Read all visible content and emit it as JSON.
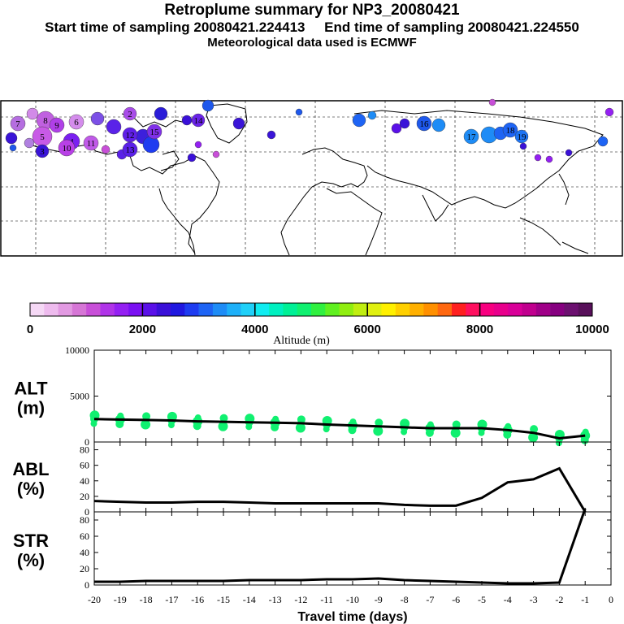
{
  "header": {
    "title": "Retroplume summary for NP3_20080421",
    "sampling_line": "Start time of sampling 20080421.224413     End time of sampling 20080421.224550",
    "met_line": "Meteorological data used is ECMWF"
  },
  "colorbar": {
    "ticks": [
      "0",
      "2000",
      "4000",
      "6000",
      "8000",
      "10000"
    ],
    "label": "Altitude (m)",
    "colors": [
      "#f5d8f5",
      "#eebbee",
      "#e29ae2",
      "#d676d6",
      "#c84fd8",
      "#b034e8",
      "#9420f2",
      "#7a10f2",
      "#5a10e8",
      "#3a10d8",
      "#2018e0",
      "#1e3cf0",
      "#1e64f4",
      "#1e8cf6",
      "#1eb0f8",
      "#20d0f8",
      "#10ecf0",
      "#00f0c0",
      "#00f096",
      "#10f070",
      "#30f040",
      "#60f020",
      "#90ee10",
      "#c0ee10",
      "#e0f010",
      "#fff000",
      "#ffd000",
      "#ffb000",
      "#ff9000",
      "#ff6810",
      "#ff2020",
      "#ff1060",
      "#f80080",
      "#e8008c",
      "#d80098",
      "#c0008e",
      "#a00088",
      "#860080",
      "#6c1070",
      "#58105a"
    ]
  },
  "map": {
    "markers": [
      {
        "label": "7",
        "color": "#b56ee0"
      },
      {
        "label": "8",
        "color": "#c060e0"
      },
      {
        "label": "9",
        "color": "#b040e8"
      },
      {
        "label": "6",
        "color": "#d48cec"
      },
      {
        "label": "5",
        "color": "#c85ae6"
      },
      {
        "label": "4",
        "color": "#7a20f0"
      },
      {
        "label": "3",
        "color": "#3a14d8"
      },
      {
        "label": "10",
        "color": "#b840e6"
      },
      {
        "label": "11",
        "color": "#c05ae8"
      },
      {
        "label": "12",
        "color": "#6020e8"
      },
      {
        "label": "13",
        "color": "#5a20e8"
      },
      {
        "label": "2",
        "color": "#a84ce8"
      },
      {
        "label": "14",
        "color": "#6a24e8"
      },
      {
        "label": "15",
        "color": "#8030e8"
      },
      {
        "label": "16",
        "color": "#1e58ec"
      },
      {
        "label": "17",
        "color": "#1e8cf6"
      },
      {
        "label": "18",
        "color": "#1e64f4"
      },
      {
        "label": "19",
        "color": "#1e74f4"
      }
    ]
  },
  "chart_data": [
    {
      "type": "scatter+line",
      "side_label": [
        "ALT",
        "(m)"
      ],
      "ylim": [
        0,
        10000
      ],
      "yticks": [
        "0",
        "5000",
        "10000"
      ],
      "x": [
        -20,
        -19,
        -18,
        -17,
        -16,
        -15,
        -14,
        -13,
        -12,
        -11,
        -10,
        -9,
        -8,
        -7,
        -6,
        -5,
        -4,
        -3,
        -2,
        -1
      ],
      "line_values": [
        2500,
        2450,
        2400,
        2350,
        2250,
        2200,
        2150,
        2100,
        2050,
        1900,
        1800,
        1700,
        1600,
        1500,
        1500,
        1500,
        1300,
        1000,
        400,
        700
      ],
      "point_color": "#10f070"
    },
    {
      "type": "line",
      "side_label": [
        "ABL",
        "(%)"
      ],
      "ylim": [
        0,
        90
      ],
      "yticks": [
        "0",
        "20",
        "40",
        "60",
        "80"
      ],
      "x": [
        -20,
        -19,
        -18,
        -17,
        -16,
        -15,
        -14,
        -13,
        -12,
        -11,
        -10,
        -9,
        -8,
        -7,
        -6,
        -5,
        -4,
        -3,
        -2,
        -1
      ],
      "values": [
        14,
        13,
        12,
        12,
        13,
        13,
        12,
        11,
        11,
        11,
        11,
        11,
        9,
        8,
        8,
        18,
        38,
        42,
        56,
        0
      ]
    },
    {
      "type": "line",
      "side_label": [
        "STR",
        "(%)"
      ],
      "ylim": [
        0,
        90
      ],
      "yticks": [
        "0",
        "20",
        "40",
        "60",
        "80"
      ],
      "x": [
        -20,
        -19,
        -18,
        -17,
        -16,
        -15,
        -14,
        -13,
        -12,
        -11,
        -10,
        -9,
        -8,
        -7,
        -6,
        -5,
        -4,
        -3,
        -2,
        -1
      ],
      "values": [
        4,
        4,
        5,
        5,
        5,
        5,
        6,
        6,
        6,
        7,
        7,
        8,
        6,
        5,
        4,
        3,
        2,
        2,
        3,
        94
      ],
      "xlabel": "Travel time (days)",
      "xticks": [
        "-20",
        "-19",
        "-18",
        "-17",
        "-16",
        "-15",
        "-14",
        "-13",
        "-12",
        "-11",
        "-10",
        "-9",
        "-8",
        "-7",
        "-6",
        "-5",
        "-4",
        "-3",
        "-2",
        "-1",
        "0"
      ]
    }
  ]
}
